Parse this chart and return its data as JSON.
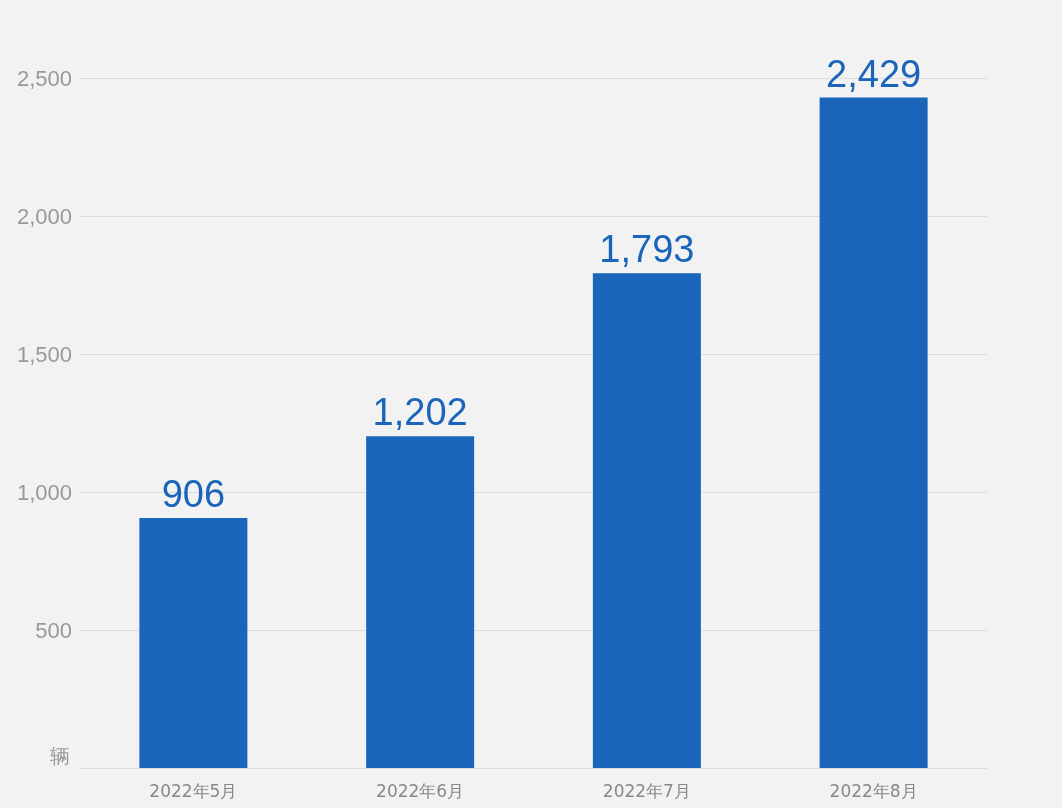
{
  "chart_data": {
    "type": "bar",
    "ylabel": "辆",
    "categories": [
      "2022年5月",
      "2022年6月",
      "2022年7月",
      "2022年8月"
    ],
    "values": [
      906,
      1202,
      1793,
      2429
    ],
    "color": "#1a65b9",
    "value_labels": [
      "906",
      "1,202",
      "1,793",
      "2,429"
    ],
    "ylim": [
      0,
      2500
    ],
    "yticks": [
      {
        "value": 0,
        "label": null
      },
      500,
      {
        "value": 1000,
        "label": "1,000"
      },
      {
        "value": 1500,
        "label": "1,500"
      },
      {
        "value": 2000,
        "label": "2,000"
      },
      {
        "value": 2500,
        "label": "2,500"
      }
    ],
    "grid": "y"
  }
}
